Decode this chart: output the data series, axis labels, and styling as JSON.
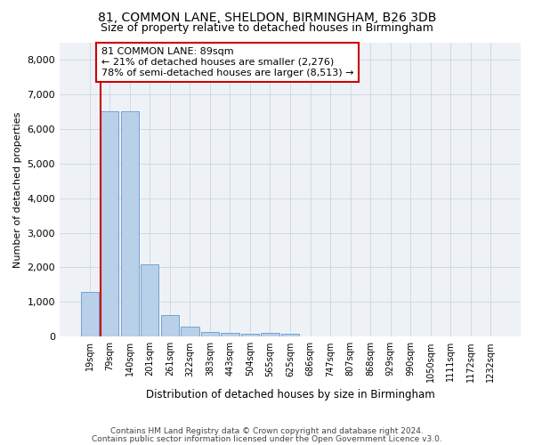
{
  "title1": "81, COMMON LANE, SHELDON, BIRMINGHAM, B26 3DB",
  "title2": "Size of property relative to detached houses in Birmingham",
  "xlabel": "Distribution of detached houses by size in Birmingham",
  "ylabel": "Number of detached properties",
  "categories": [
    "19sqm",
    "79sqm",
    "140sqm",
    "201sqm",
    "261sqm",
    "322sqm",
    "383sqm",
    "443sqm",
    "504sqm",
    "565sqm",
    "625sqm",
    "686sqm",
    "747sqm",
    "807sqm",
    "868sqm",
    "929sqm",
    "990sqm",
    "1050sqm",
    "1111sqm",
    "1172sqm",
    "1232sqm"
  ],
  "values": [
    1300,
    6500,
    6500,
    2100,
    620,
    290,
    145,
    105,
    75,
    105,
    75,
    0,
    0,
    0,
    0,
    0,
    0,
    0,
    0,
    0,
    0
  ],
  "bar_color": "#b8d0e8",
  "bar_edge_color": "#6699cc",
  "annotation_text": "81 COMMON LANE: 89sqm\n← 21% of detached houses are smaller (2,276)\n78% of semi-detached houses are larger (8,513) →",
  "annotation_box_color": "#ffffff",
  "annotation_border_color": "#cc0000",
  "red_line_color": "#cc0000",
  "ylim": [
    0,
    8500
  ],
  "yticks": [
    0,
    1000,
    2000,
    3000,
    4000,
    5000,
    6000,
    7000,
    8000
  ],
  "footer1": "Contains HM Land Registry data © Crown copyright and database right 2024.",
  "footer2": "Contains public sector information licensed under the Open Government Licence v3.0.",
  "background_color": "#eef2f7",
  "grid_color": "#ccd6e0",
  "title_fontsize": 10,
  "subtitle_fontsize": 9
}
